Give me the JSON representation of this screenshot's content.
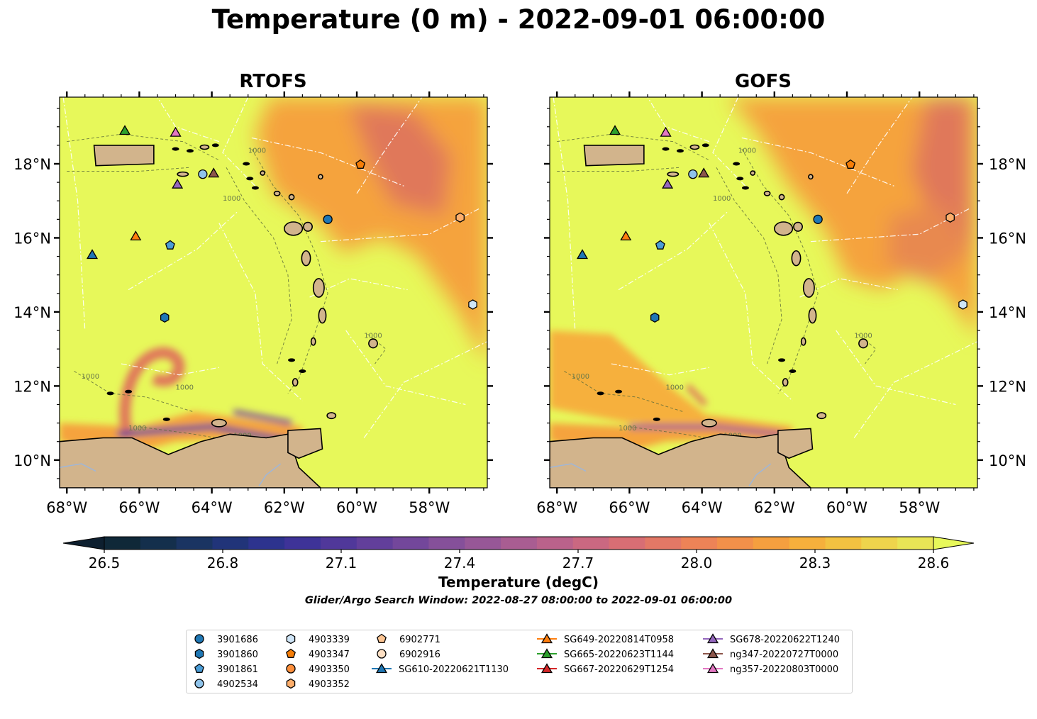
{
  "title": "Temperature (0 m) - 2022-09-01 06:00:00",
  "panels": [
    {
      "title": "RTOFS"
    },
    {
      "title": "GOFS"
    }
  ],
  "map_extent": {
    "lon_min": -68.2,
    "lon_max": -56.4,
    "lat_min": 9.25,
    "lat_max": 19.8
  },
  "axes": {
    "lon_ticks": [
      {
        "value": -68,
        "label": "68°W"
      },
      {
        "value": -66,
        "label": "66°W"
      },
      {
        "value": -64,
        "label": "64°W"
      },
      {
        "value": -62,
        "label": "62°W"
      },
      {
        "value": -60,
        "label": "60°W"
      },
      {
        "value": -58,
        "label": "58°W"
      }
    ],
    "lat_ticks": [
      {
        "value": 10,
        "label": "10°N"
      },
      {
        "value": 12,
        "label": "12°N"
      },
      {
        "value": 14,
        "label": "14°N"
      },
      {
        "value": 16,
        "label": "16°N"
      },
      {
        "value": 18,
        "label": "18°N"
      }
    ]
  },
  "contour_label": "1000",
  "colorbar": {
    "label": "Temperature (degC)",
    "min": 26.4,
    "max": 28.7,
    "ticks": [
      "26.5",
      "26.8",
      "27.1",
      "27.4",
      "27.7",
      "28.0",
      "28.3",
      "28.6"
    ],
    "colors": [
      "#0f2838",
      "#142f4c",
      "#1a3462",
      "#213479",
      "#2d338e",
      "#3e3398",
      "#50389a",
      "#623f9b",
      "#73479b",
      "#85509a",
      "#975797",
      "#a95d92",
      "#ba628b",
      "#ca6881",
      "#d86e74",
      "#e37866",
      "#ed8357",
      "#f2904a",
      "#f59f3f",
      "#f6b03c",
      "#f3c241",
      "#eed44c",
      "#e9e556"
    ],
    "over_color": "#e7f85a",
    "under_color": "#0d1f2f"
  },
  "search_window": "Glider/Argo Search Window: 2022-08-27 08:00:00 to 2022-09-01 06:00:00",
  "legend": [
    {
      "label": "3901686",
      "marker": "circle",
      "color": "#1f77b4"
    },
    {
      "label": "3901860",
      "marker": "hexagon",
      "color": "#1f77b4"
    },
    {
      "label": "3901861",
      "marker": "pentagon",
      "color": "#4a9cd6"
    },
    {
      "label": "4902534",
      "marker": "circle",
      "color": "#8fc3ea"
    },
    {
      "label": "4903339",
      "marker": "hexagon",
      "color": "#cfe5f7"
    },
    {
      "label": "4903347",
      "marker": "pentagon",
      "color": "#f57d07"
    },
    {
      "label": "4903350",
      "marker": "circle",
      "color": "#fd8f3c"
    },
    {
      "label": "4903352",
      "marker": "hexagon",
      "color": "#fdae6b"
    },
    {
      "label": "6902771",
      "marker": "pentagon",
      "color": "#fdc593"
    },
    {
      "label": "6902916",
      "marker": "circle",
      "color": "#fee0c4"
    },
    {
      "label": "SG610-20220621T1130",
      "marker": "triangle",
      "color": "#1f77b4",
      "line": true
    },
    {
      "label": "SG649-20220814T0958",
      "marker": "triangle",
      "color": "#ff7f0e",
      "line": true
    },
    {
      "label": "SG665-20220623T1144",
      "marker": "triangle",
      "color": "#2ca02c",
      "line": true
    },
    {
      "label": "SG667-20220629T1254",
      "marker": "triangle",
      "color": "#d62728",
      "line": true
    },
    {
      "label": "SG678-20220622T1240",
      "marker": "triangle",
      "color": "#9467bd",
      "line": true
    },
    {
      "label": "ng347-20220727T0000",
      "marker": "triangle",
      "color": "#8c564b",
      "line": true
    },
    {
      "label": "ng357-20220803T0000",
      "marker": "triangle",
      "color": "#e377c2",
      "line": true
    }
  ],
  "platforms": [
    {
      "id": "3901686",
      "lon": -60.8,
      "lat": 16.5
    },
    {
      "id": "3901860",
      "lon": -65.3,
      "lat": 13.85
    },
    {
      "id": "3901861",
      "lon": -65.15,
      "lat": 15.8
    },
    {
      "id": "4902534",
      "lon": -64.25,
      "lat": 17.72
    },
    {
      "id": "4903339",
      "lon": -56.8,
      "lat": 14.2
    },
    {
      "id": "4903347",
      "lon": -59.9,
      "lat": 17.98
    },
    {
      "id": "4903352",
      "lon": -57.15,
      "lat": 16.55
    },
    {
      "id": "SG610-20220621T1130",
      "lon": -67.3,
      "lat": 15.55
    },
    {
      "id": "SG649-20220814T0958",
      "lon": -66.1,
      "lat": 16.05
    },
    {
      "id": "SG665-20220623T1144",
      "lon": -66.4,
      "lat": 18.9
    },
    {
      "id": "SG678-20220622T1240",
      "lon": -64.95,
      "lat": 17.45
    },
    {
      "id": "ng347-20220727T0000",
      "lon": -63.95,
      "lat": 17.75
    },
    {
      "id": "ng357-20220803T0000",
      "lon": -65.0,
      "lat": 18.85
    }
  ],
  "colors": {
    "land": "#d2b48c",
    "ocean_high": "#e7f85a",
    "warm": "#f5a33c",
    "warmer": "#e0785a",
    "cool": "#4a3a9a"
  }
}
